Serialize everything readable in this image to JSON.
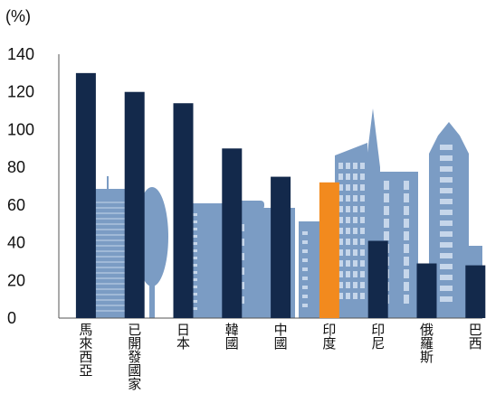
{
  "chart_data": {
    "type": "bar",
    "unit_label": "(%)",
    "categories": [
      "馬來西亞",
      "已開發國家",
      "日本",
      "韓國",
      "中國",
      "印度",
      "印尼",
      "俄羅斯",
      "巴西"
    ],
    "values": [
      130,
      120,
      114,
      90,
      75,
      72,
      41,
      29,
      28
    ],
    "highlight_index": 5,
    "ylim": [
      0,
      140
    ],
    "yticks": [
      0,
      20,
      40,
      60,
      80,
      100,
      120,
      140
    ],
    "colors": {
      "bar": "#13294b",
      "highlight": "#f28a1e",
      "skyline": "#7b9cc4",
      "skyline_light": "#c6d6ea"
    }
  }
}
